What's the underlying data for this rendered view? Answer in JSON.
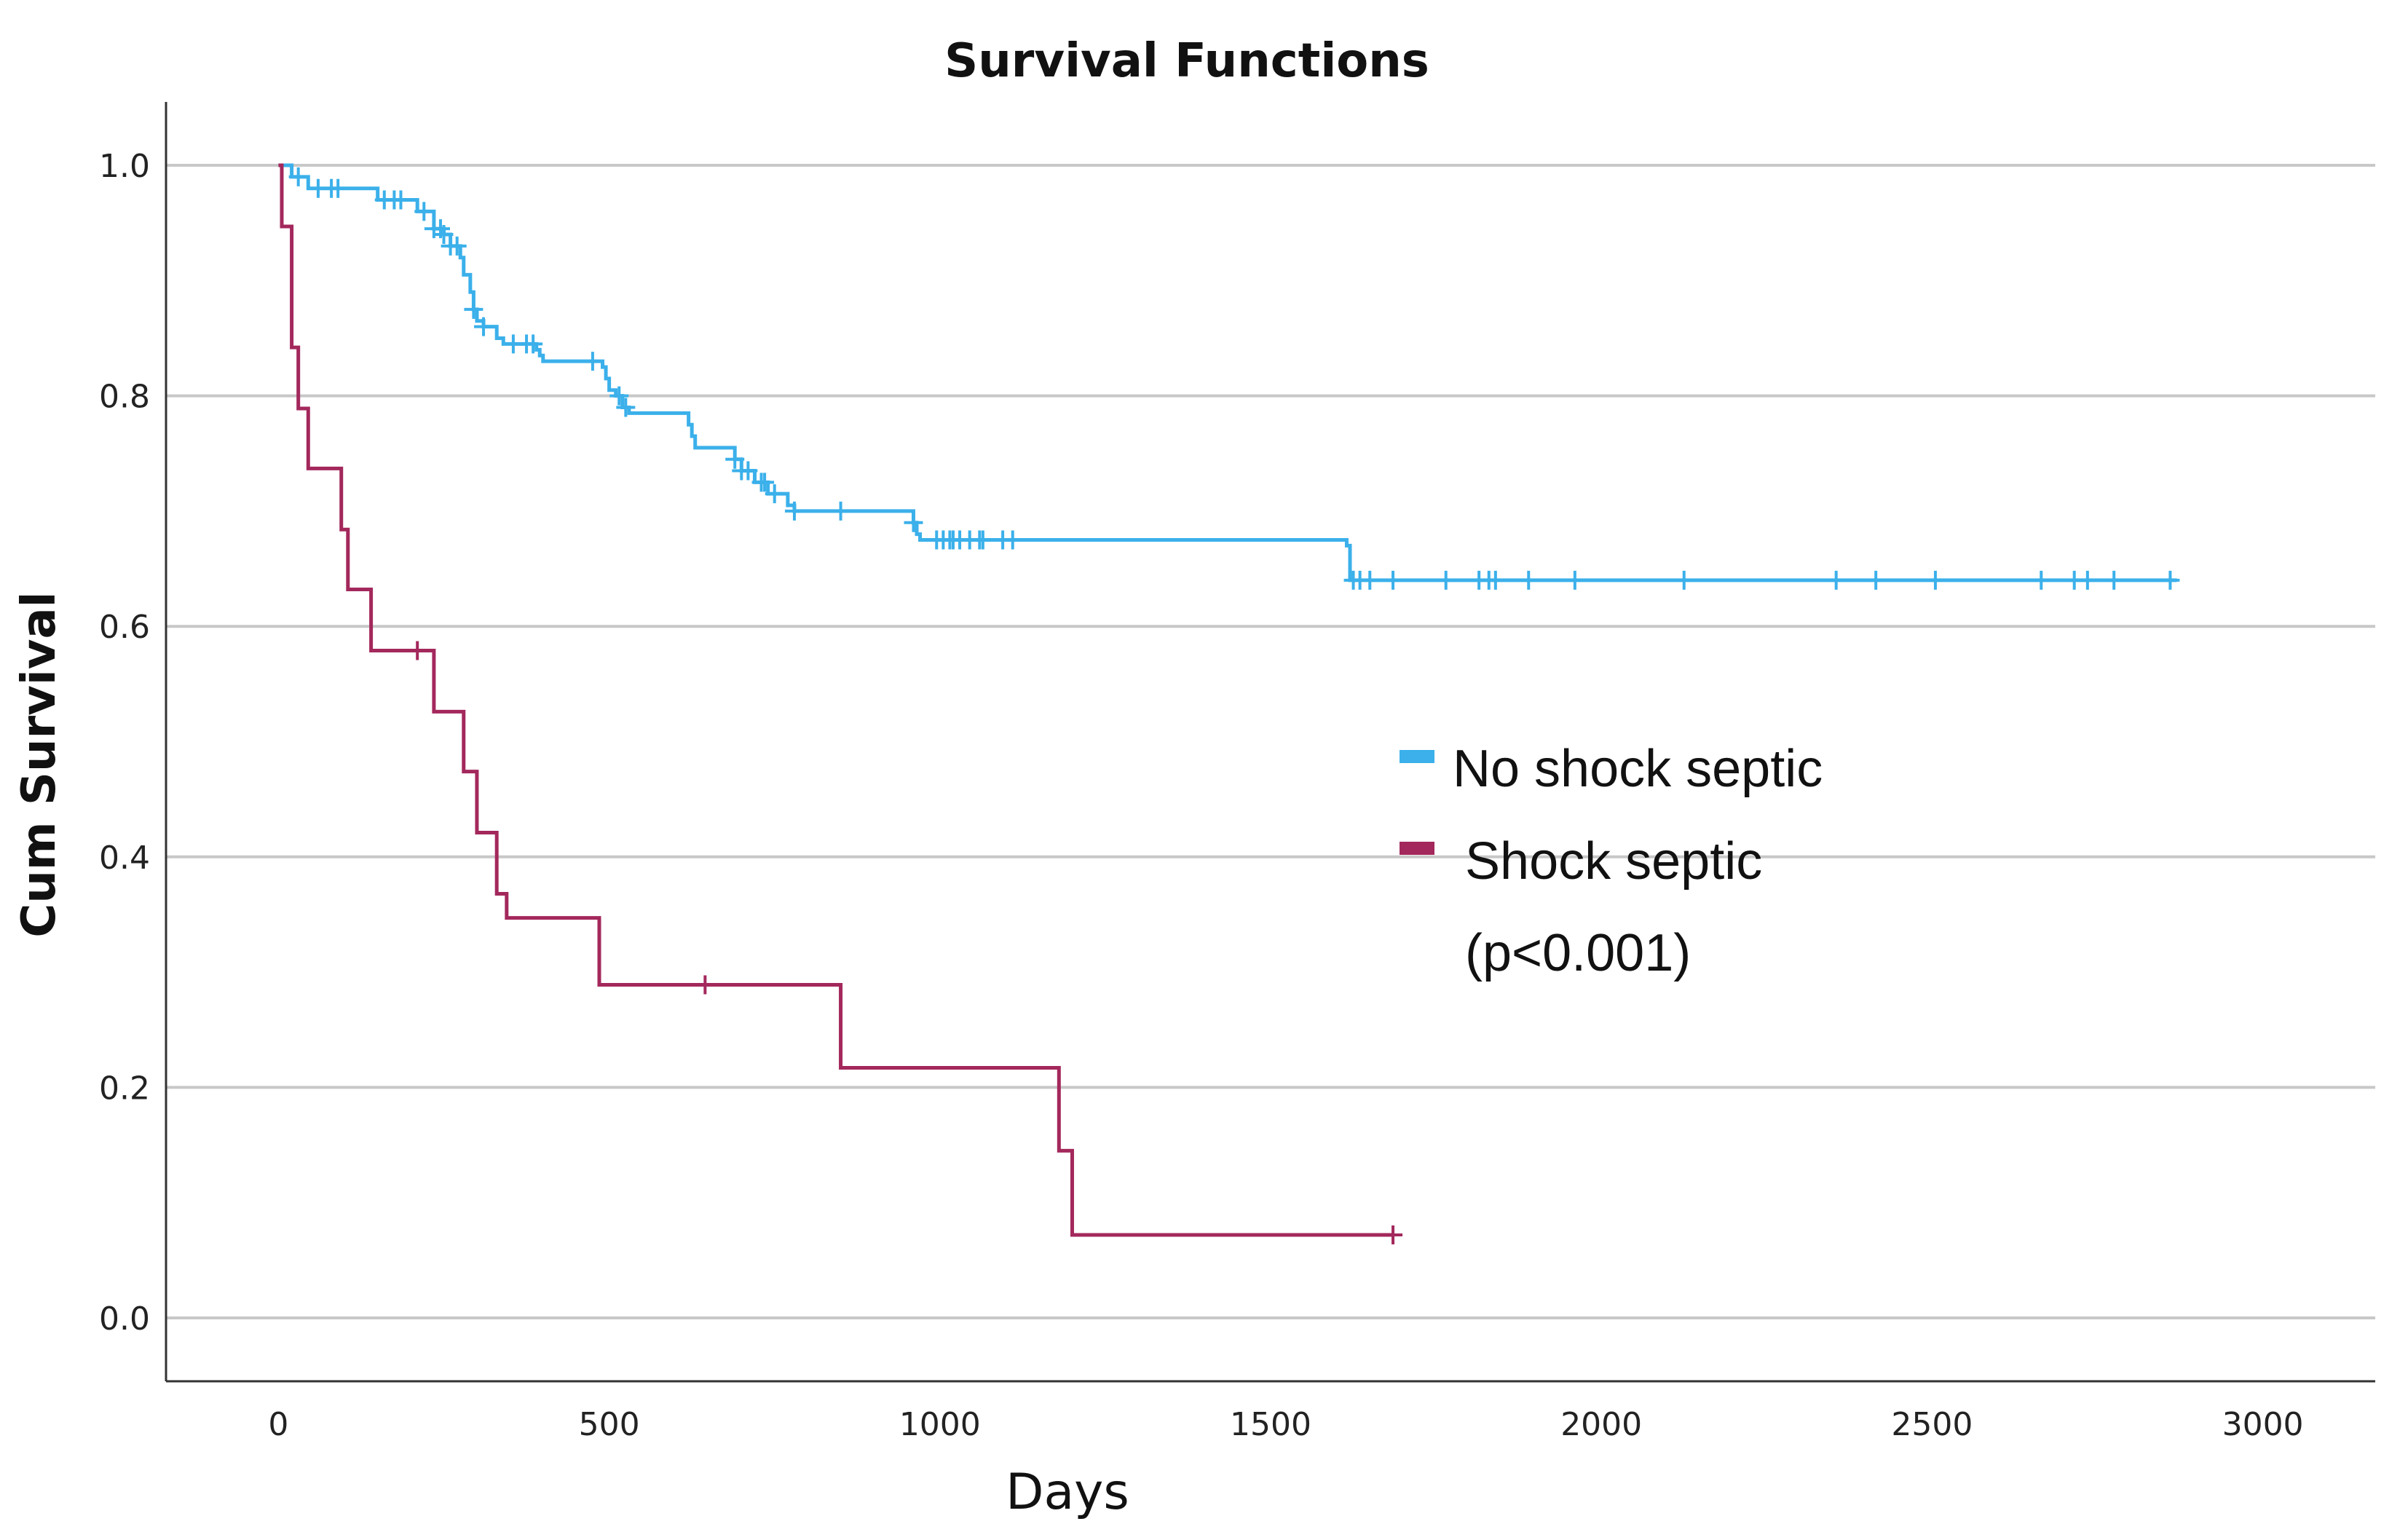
{
  "chart_data": {
    "type": "line",
    "title": "Survival Functions",
    "xlabel": "Days",
    "ylabel": "Cum Survival",
    "xlim": [
      -170,
      3170
    ],
    "ylim": [
      -0.055,
      1.055
    ],
    "xticks": [
      0,
      500,
      1000,
      1500,
      2000,
      2500,
      3000
    ],
    "yticks": [
      0.0,
      0.2,
      0.4,
      0.6,
      0.8,
      1.0
    ],
    "xtick_labels": [
      "0",
      "500",
      "1000",
      "1500",
      "2000",
      "2500",
      "3000"
    ],
    "ytick_labels": [
      "0.0",
      "0.2",
      "0.4",
      "0.6",
      "0.8",
      "1.0"
    ],
    "grid": "horizontal",
    "step": true,
    "legend_position": "center-right",
    "annotation": "(p<0.001)",
    "series": [
      {
        "name": "No shock septic",
        "color": "#3bb0ea",
        "points": [
          [
            0,
            1.0
          ],
          [
            20,
            0.99
          ],
          [
            45,
            0.98
          ],
          [
            150,
            0.97
          ],
          [
            210,
            0.96
          ],
          [
            235,
            0.945
          ],
          [
            250,
            0.94
          ],
          [
            260,
            0.93
          ],
          [
            275,
            0.92
          ],
          [
            280,
            0.905
          ],
          [
            290,
            0.89
          ],
          [
            295,
            0.875
          ],
          [
            300,
            0.865
          ],
          [
            310,
            0.86
          ],
          [
            330,
            0.85
          ],
          [
            340,
            0.845
          ],
          [
            390,
            0.84
          ],
          [
            395,
            0.835
          ],
          [
            400,
            0.83
          ],
          [
            490,
            0.825
          ],
          [
            495,
            0.815
          ],
          [
            500,
            0.805
          ],
          [
            510,
            0.8
          ],
          [
            520,
            0.79
          ],
          [
            530,
            0.785
          ],
          [
            620,
            0.775
          ],
          [
            625,
            0.765
          ],
          [
            630,
            0.755
          ],
          [
            690,
            0.745
          ],
          [
            700,
            0.735
          ],
          [
            720,
            0.725
          ],
          [
            740,
            0.715
          ],
          [
            770,
            0.705
          ],
          [
            780,
            0.7
          ],
          [
            960,
            0.69
          ],
          [
            965,
            0.68
          ],
          [
            970,
            0.675
          ],
          [
            1615,
            0.67
          ],
          [
            1620,
            0.64
          ],
          [
            2870,
            0.64
          ]
        ],
        "censored_x": [
          30,
          60,
          80,
          90,
          160,
          175,
          185,
          220,
          235,
          245,
          250,
          260,
          270,
          295,
          310,
          355,
          375,
          385,
          475,
          515,
          525,
          690,
          700,
          710,
          730,
          735,
          750,
          780,
          850,
          960,
          995,
          1005,
          1015,
          1020,
          1030,
          1045,
          1060,
          1065,
          1095,
          1110,
          1625,
          1635,
          1650,
          1685,
          1765,
          1815,
          1830,
          1840,
          1890,
          1960,
          2125,
          2355,
          2415,
          2505,
          2665,
          2715,
          2735,
          2775,
          2860
        ]
      },
      {
        "name": "Shock septic",
        "color": "#a3285c",
        "points": [
          [
            0,
            1.0
          ],
          [
            5,
            0.947
          ],
          [
            20,
            0.842
          ],
          [
            30,
            0.789
          ],
          [
            45,
            0.737
          ],
          [
            95,
            0.684
          ],
          [
            105,
            0.632
          ],
          [
            140,
            0.579
          ],
          [
            235,
            0.526
          ],
          [
            280,
            0.474
          ],
          [
            300,
            0.421
          ],
          [
            330,
            0.368
          ],
          [
            345,
            0.347
          ],
          [
            485,
            0.289
          ],
          [
            850,
            0.217
          ],
          [
            1180,
            0.145
          ],
          [
            1200,
            0.072
          ],
          [
            1685,
            0.072
          ]
        ],
        "censored_x": [
          210,
          645,
          1685
        ]
      }
    ]
  }
}
